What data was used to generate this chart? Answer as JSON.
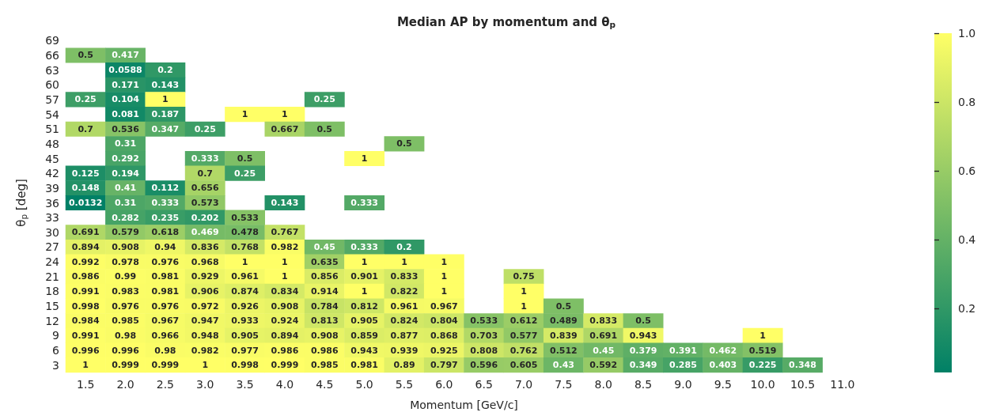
{
  "chart_data": {
    "type": "heatmap",
    "title": "Median AP by momentum and θ$_{p}$",
    "xlabel": "Momentum [GeV/c]",
    "ylabel": "θ$_{p}$ [deg]",
    "categories": [
      "1.5",
      "2.0",
      "2.5",
      "3.0",
      "3.5",
      "4.0",
      "4.5",
      "5.0",
      "5.5",
      "6.0",
      "6.5",
      "7.0",
      "7.5",
      "8.0",
      "8.5",
      "9.0",
      "9.5",
      "10.0",
      "10.5",
      "11.0"
    ],
    "y_categories": [
      "69",
      "66",
      "63",
      "60",
      "57",
      "54",
      "51",
      "48",
      "45",
      "42",
      "39",
      "36",
      "33",
      "30",
      "27",
      "24",
      "21",
      "18",
      "15",
      "12",
      "9",
      "6",
      "3"
    ],
    "clim": [
      0.0132,
      1
    ],
    "cticks": [
      0.2,
      0.4,
      0.6,
      0.8,
      {
        "value": 1,
        "label": "1.0"
      }
    ],
    "data_labels": true,
    "cells": [
      [
        null,
        null,
        null,
        null,
        null,
        null,
        null,
        null,
        null,
        null,
        null,
        null,
        null,
        null,
        null,
        null,
        null,
        null,
        null,
        null
      ],
      [
        0.5,
        0.417,
        null,
        null,
        null,
        null,
        null,
        null,
        null,
        null,
        null,
        null,
        null,
        null,
        null,
        null,
        null,
        null,
        null,
        null
      ],
      [
        null,
        0.0588,
        0.2,
        null,
        null,
        null,
        null,
        null,
        null,
        null,
        null,
        null,
        null,
        null,
        null,
        null,
        null,
        null,
        null,
        null
      ],
      [
        null,
        0.171,
        0.143,
        null,
        null,
        null,
        null,
        null,
        null,
        null,
        null,
        null,
        null,
        null,
        null,
        null,
        null,
        null,
        null,
        null
      ],
      [
        0.25,
        0.104,
        1,
        null,
        null,
        null,
        0.25,
        null,
        null,
        null,
        null,
        null,
        null,
        null,
        null,
        null,
        null,
        null,
        null,
        null
      ],
      [
        null,
        0.081,
        0.187,
        null,
        1,
        1,
        null,
        null,
        null,
        null,
        null,
        null,
        null,
        null,
        null,
        null,
        null,
        null,
        null,
        null
      ],
      [
        0.7,
        0.536,
        0.347,
        0.25,
        null,
        0.667,
        0.5,
        null,
        null,
        null,
        null,
        null,
        null,
        null,
        null,
        null,
        null,
        null,
        null,
        null
      ],
      [
        null,
        0.31,
        null,
        null,
        null,
        null,
        null,
        null,
        0.5,
        null,
        null,
        null,
        null,
        null,
        null,
        null,
        null,
        null,
        null,
        null
      ],
      [
        null,
        0.292,
        null,
        0.333,
        0.5,
        null,
        null,
        1,
        null,
        null,
        null,
        null,
        null,
        null,
        null,
        null,
        null,
        null,
        null,
        null
      ],
      [
        0.125,
        0.194,
        null,
        0.7,
        0.25,
        null,
        null,
        null,
        null,
        null,
        null,
        null,
        null,
        null,
        null,
        null,
        null,
        null,
        null,
        null
      ],
      [
        0.148,
        0.41,
        0.112,
        0.656,
        null,
        null,
        null,
        null,
        null,
        null,
        null,
        null,
        null,
        null,
        null,
        null,
        null,
        null,
        null,
        null
      ],
      [
        0.0132,
        0.31,
        0.333,
        0.573,
        null,
        0.143,
        null,
        0.333,
        null,
        null,
        null,
        null,
        null,
        null,
        null,
        null,
        null,
        null,
        null,
        null
      ],
      [
        null,
        0.282,
        0.235,
        0.202,
        0.533,
        null,
        null,
        null,
        null,
        null,
        null,
        null,
        null,
        null,
        null,
        null,
        null,
        null,
        null,
        null
      ],
      [
        0.691,
        0.579,
        0.618,
        0.469,
        0.478,
        0.767,
        null,
        null,
        null,
        null,
        null,
        null,
        null,
        null,
        null,
        null,
        null,
        null,
        null,
        null
      ],
      [
        0.894,
        0.908,
        0.94,
        0.836,
        0.768,
        0.982,
        0.45,
        0.333,
        0.2,
        null,
        null,
        null,
        null,
        null,
        null,
        null,
        null,
        null,
        null,
        null
      ],
      [
        0.992,
        0.978,
        0.976,
        0.968,
        1,
        1,
        0.635,
        1,
        1,
        1,
        null,
        null,
        null,
        null,
        null,
        null,
        null,
        null,
        null,
        null
      ],
      [
        0.986,
        0.99,
        0.981,
        0.929,
        0.961,
        1,
        0.856,
        0.901,
        0.833,
        1,
        null,
        0.75,
        null,
        null,
        null,
        null,
        null,
        null,
        null,
        null
      ],
      [
        0.991,
        0.983,
        0.981,
        0.906,
        0.874,
        0.834,
        0.914,
        1,
        0.822,
        1,
        null,
        1,
        null,
        null,
        null,
        null,
        null,
        null,
        null,
        null
      ],
      [
        0.998,
        0.976,
        0.976,
        0.972,
        0.926,
        0.908,
        0.784,
        0.812,
        0.961,
        0.967,
        null,
        1,
        0.5,
        null,
        null,
        null,
        null,
        null,
        null,
        null
      ],
      [
        0.984,
        0.985,
        0.967,
        0.947,
        0.933,
        0.924,
        0.813,
        0.905,
        0.824,
        0.804,
        0.533,
        0.612,
        0.489,
        0.833,
        0.5,
        null,
        null,
        null,
        null,
        null
      ],
      [
        0.991,
        0.98,
        0.966,
        0.948,
        0.905,
        0.894,
        0.908,
        0.859,
        0.877,
        0.868,
        0.703,
        0.577,
        0.839,
        0.691,
        0.943,
        null,
        null,
        1,
        null,
        null
      ],
      [
        0.996,
        0.996,
        0.98,
        0.982,
        0.977,
        0.986,
        0.986,
        0.943,
        0.939,
        0.925,
        0.808,
        0.762,
        0.512,
        0.45,
        0.379,
        0.391,
        0.462,
        0.519,
        null,
        null
      ],
      [
        1,
        0.999,
        0.999,
        1,
        0.998,
        0.999,
        0.985,
        0.981,
        0.89,
        0.797,
        0.596,
        0.605,
        0.43,
        0.592,
        0.349,
        0.285,
        0.403,
        0.225,
        0.348,
        null
      ]
    ]
  }
}
